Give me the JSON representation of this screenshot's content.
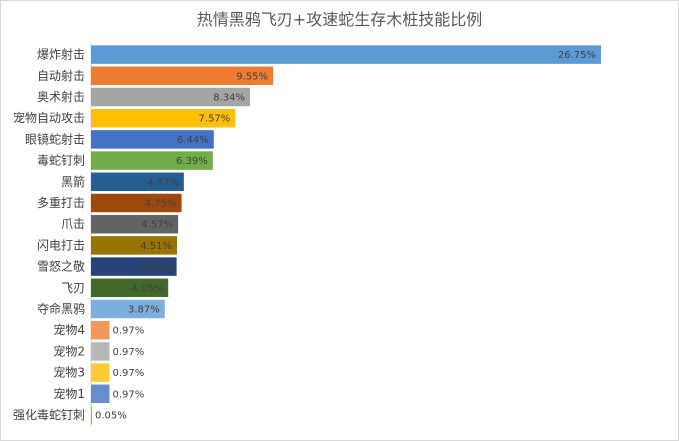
{
  "chart_data": {
    "type": "bar",
    "orientation": "horizontal",
    "title": "热情黑鸦飞刃+攻速蛇生存木桩技能比例",
    "xlabel": "",
    "ylabel": "",
    "grid": false,
    "legend": "none",
    "categories": [
      "爆炸射击",
      "自动射击",
      "奥术射击",
      "宠物自动攻击",
      "眼镜蛇射击",
      "毒蛇钉刺",
      "黑箭",
      "多重打击",
      "爪击",
      "闪电打击",
      "雪怒之敬",
      "飞刃",
      "夺命黑鸦",
      "宠物4",
      "宠物2",
      "宠物3",
      "宠物1",
      "强化毒蛇钉刺"
    ],
    "values": [
      26.75,
      9.55,
      8.34,
      7.57,
      6.44,
      6.39,
      4.87,
      4.75,
      4.57,
      4.51,
      4.49,
      4.05,
      3.87,
      0.97,
      0.97,
      0.97,
      0.97,
      0.05
    ],
    "value_labels": [
      "26.75%",
      "9.55%",
      "8.34%",
      "7.57%",
      "6.44%",
      "6.39%",
      "4.87%",
      "4.75%",
      "4.57%",
      "4.51%",
      "4.49%",
      "4.05%",
      "3.87%",
      "0.97%",
      "0.97%",
      "0.97%",
      "0.97%",
      "0.05%"
    ],
    "colors": [
      "#5b9bd5",
      "#ed7d31",
      "#a5a5a5",
      "#ffc000",
      "#4472c4",
      "#70ad47",
      "#255e91",
      "#9e480e",
      "#636363",
      "#997300",
      "#264478",
      "#43682b",
      "#7cafdd",
      "#f1975a",
      "#b7b7b7",
      "#ffcd33",
      "#698ed0",
      "#8cc168"
    ],
    "xlim": [
      0,
      28
    ]
  }
}
